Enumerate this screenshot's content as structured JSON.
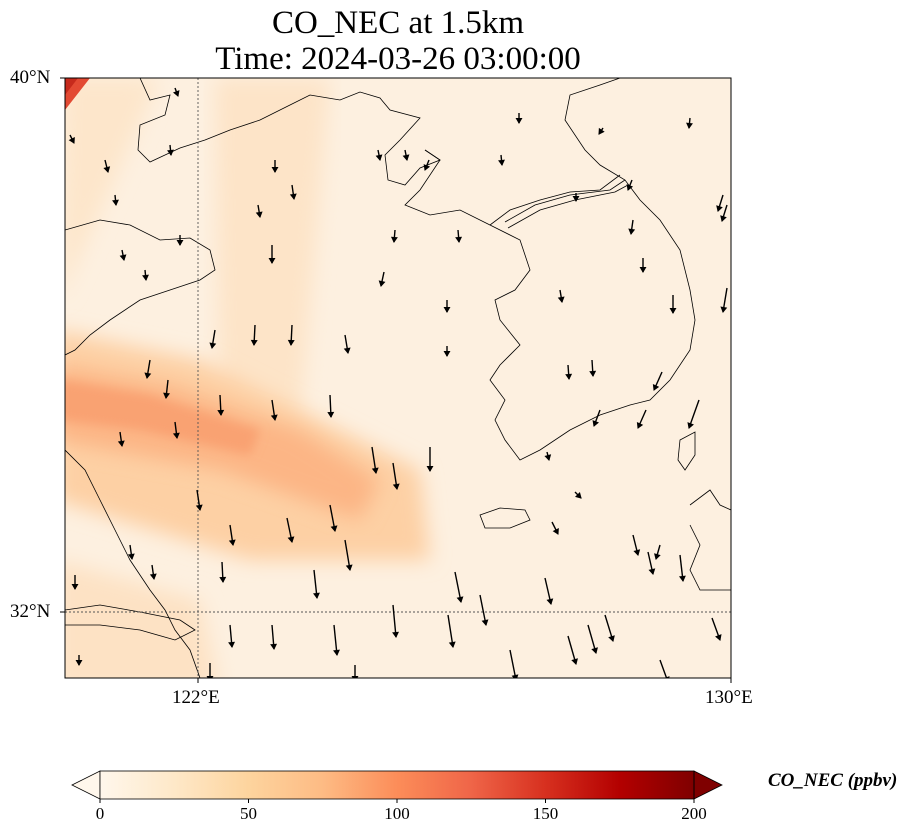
{
  "title": {
    "line1": "CO_NEC at 1.5km",
    "line2": "Time: 2024-03-26 03:00:00"
  },
  "axes": {
    "lat_labels": [
      "40°N",
      "32°N"
    ],
    "lon_labels": [
      "122°E",
      "130°E"
    ],
    "gridlines": "dotted at 122°E and 32°N"
  },
  "colorbar": {
    "label": "CO_NEC (ppbv)",
    "ticks": [
      "0",
      "50",
      "100",
      "150",
      "200"
    ],
    "range": [
      0,
      200
    ],
    "extend": "both",
    "colormap": "OrRd",
    "colors": [
      "#fff7ec",
      "#fdd49e",
      "#fc8d59",
      "#d7301f",
      "#7f0000"
    ]
  },
  "chart_data": {
    "type": "heatmap",
    "variable": "CO_NEC",
    "units": "ppbv",
    "height": "1.5km",
    "time": "2024-03-26 03:00:00",
    "region": {
      "lon": [
        120,
        130
      ],
      "lat": [
        31,
        40
      ]
    },
    "overlay": "wind vectors",
    "features": "coastlines"
  }
}
